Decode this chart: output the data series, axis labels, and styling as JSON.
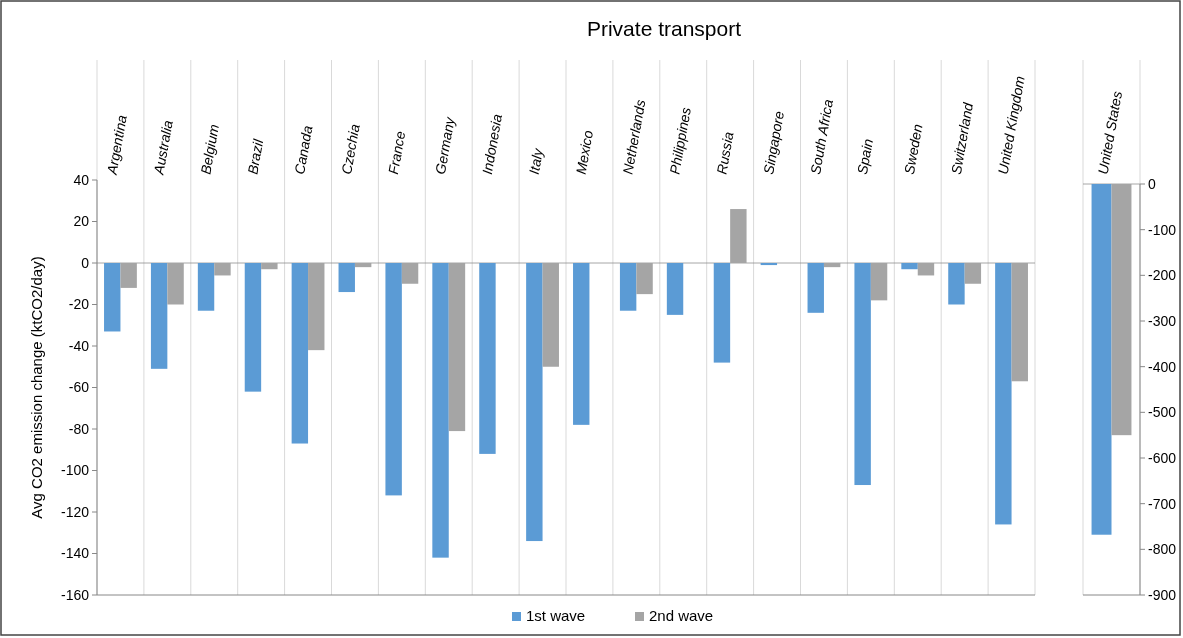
{
  "chart_data": [
    {
      "type": "bar",
      "title": "Private transport",
      "ylabel": "Avg CO2 emission change (ktCO2/day)",
      "categories": [
        "Argentina",
        "Australia",
        "Belgium",
        "Brazil",
        "Canada",
        "Czechia",
        "France",
        "Germany",
        "Indonesia",
        "Italy",
        "Mexico",
        "Netherlands",
        "Philippines",
        "Russia",
        "Singapore",
        "South Africa",
        "Spain",
        "Sweden",
        "Switzerland",
        "United Kingdom"
      ],
      "series": [
        {
          "name": "1st wave",
          "color": "#5b9bd5",
          "values": [
            -33,
            -51,
            -23,
            -62,
            -87,
            -14,
            -112,
            -142,
            -92,
            -134,
            -78,
            -23,
            -25,
            -48,
            -1,
            -24,
            -107,
            -3,
            -20,
            -126
          ]
        },
        {
          "name": "2nd wave",
          "color": "#a5a5a5",
          "values": [
            -12,
            -20,
            -6,
            -3,
            -42,
            -2,
            -10,
            -81,
            null,
            -50,
            null,
            -15,
            null,
            26,
            null,
            -2,
            -18,
            -6,
            -10,
            -57
          ]
        }
      ],
      "ylim": [
        -160,
        40
      ],
      "yticks": [
        -160,
        -140,
        -120,
        -100,
        -80,
        -60,
        -40,
        -20,
        0,
        20,
        40
      ],
      "legend": "bottom",
      "grid": "x"
    },
    {
      "type": "bar",
      "categories": [
        "United States"
      ],
      "series": [
        {
          "color": "#5b9bd5",
          "values": [
            -768
          ]
        },
        {
          "color": "#a5a5a5",
          "values": [
            -550
          ]
        }
      ],
      "ylim": [
        -900,
        0
      ],
      "yticks": [
        -900,
        -800,
        -700,
        -600,
        -500,
        -400,
        -300,
        -200,
        -100,
        0
      ],
      "grid": "x"
    }
  ]
}
